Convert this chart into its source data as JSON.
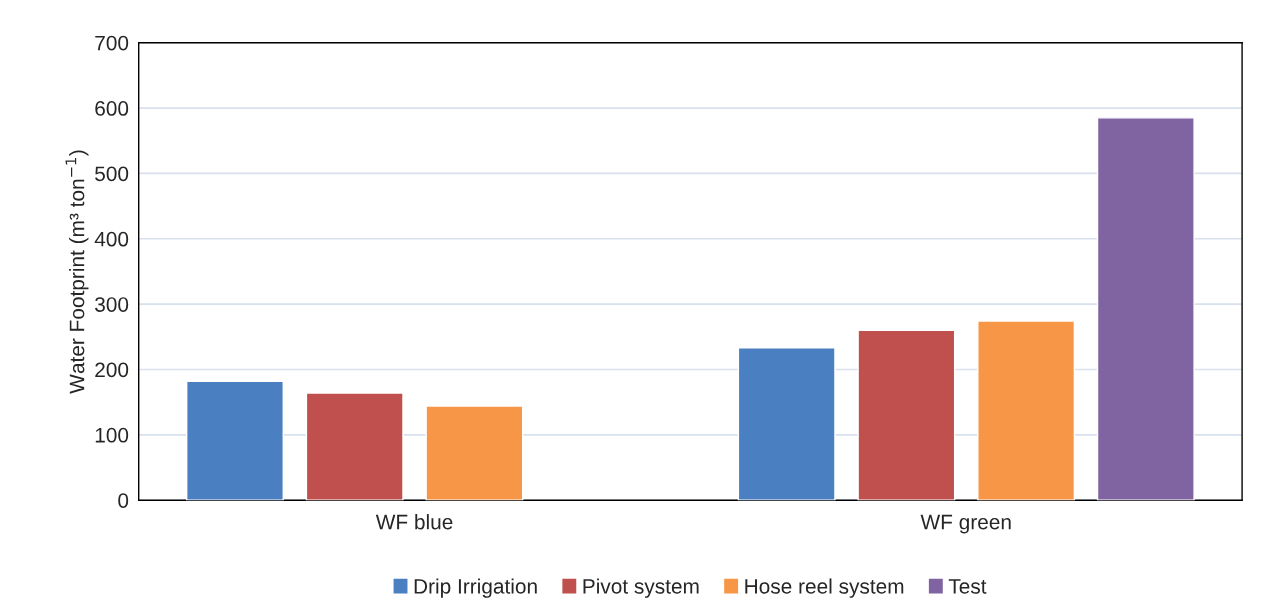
{
  "chart_data": {
    "type": "bar",
    "ylabel": "Water Footprint (m³ ton$^{−1}$)",
    "categories": [
      "WF blue",
      "WF green"
    ],
    "series": [
      {
        "name": "Drip Irrigation",
        "color": "#4a7fc1",
        "values": [
          182,
          233
        ]
      },
      {
        "name": "Pivot system",
        "color": "#c0504d",
        "values": [
          164,
          260
        ]
      },
      {
        "name": "Hose reel system",
        "color": "#f79646",
        "values": [
          144,
          274
        ]
      },
      {
        "name": "Test",
        "color": "#8064a2",
        "values": [
          null,
          585
        ]
      }
    ],
    "ylim": [
      0,
      700
    ],
    "yticks": [
      0,
      100,
      200,
      300,
      400,
      500,
      600,
      700
    ],
    "grid": "y",
    "legend": "bottom"
  }
}
